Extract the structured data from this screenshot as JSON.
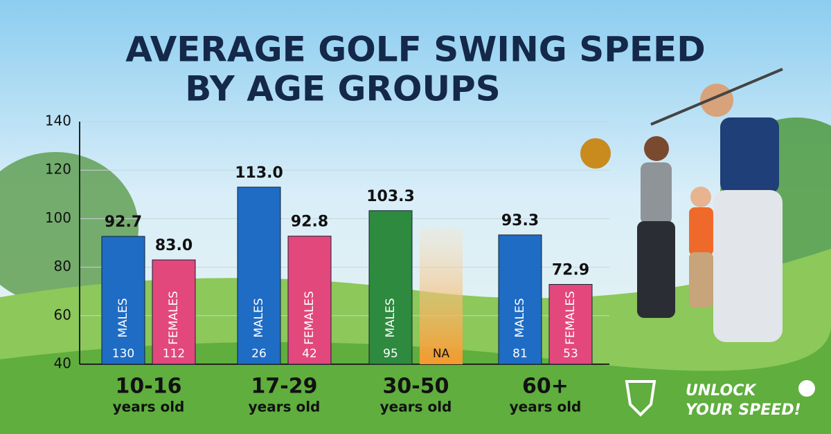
{
  "chart_data": {
    "type": "bar",
    "title_lines": [
      "AVERAGE GOLF SWING SPEED",
      "BY AGE GROUPS"
    ],
    "categories": [
      "10-16",
      "17-29",
      "30-50",
      "60+"
    ],
    "category_notes": [
      "years old",
      "years old",
      "years old",
      "years old"
    ],
    "series": [
      {
        "name": "MALES",
        "colors": [
          "#1f6cc4",
          "#1f6cc4",
          "#2e8a3e",
          "#1f6cc4"
        ],
        "values": [
          92.7,
          113.0,
          103.3,
          93.3
        ],
        "value_labels": [
          "92.7",
          "113.0",
          "103.3",
          "93.3"
        ],
        "sample_sizes": [
          130,
          26,
          95,
          81
        ]
      },
      {
        "name": "FEMALES",
        "colors": [
          "#e2487c",
          "#e2487c",
          "#f59a2c",
          "#e2487c"
        ],
        "values": [
          83.0,
          92.8,
          null,
          72.9
        ],
        "value_labels": [
          "83.0",
          "92.8",
          null,
          "72.9"
        ],
        "sample_sizes": [
          112,
          42,
          "NA",
          53
        ]
      }
    ],
    "ylim": [
      40,
      140
    ],
    "yticks": [
      40,
      60,
      80,
      100,
      120,
      140
    ],
    "grid": true,
    "brand": [
      "UNLOCK",
      "YOUR SPEED!"
    ]
  }
}
